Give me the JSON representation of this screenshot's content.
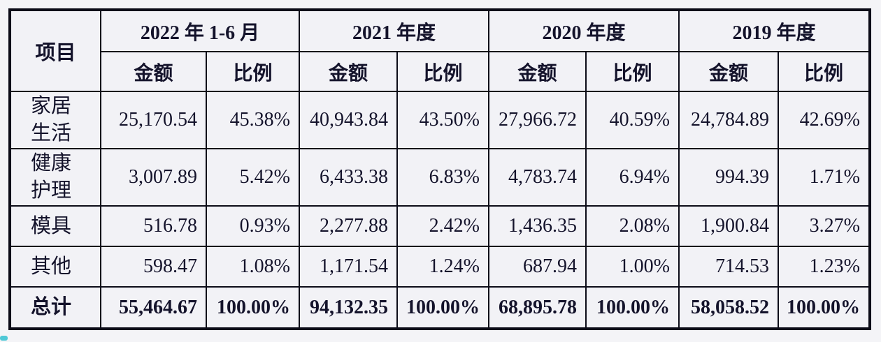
{
  "page": {
    "background_color": "#f4f4f7",
    "cell_background_color": "#f2f2f6",
    "border_color": "#0c0c18",
    "text_color": "#14132b",
    "corner_accent_color": "#4fc8d6"
  },
  "table": {
    "item_header": "项目",
    "col_groups": [
      {
        "label": "2022 年 1-6 月",
        "sub": [
          "金额",
          "比例"
        ]
      },
      {
        "label": "2021 年度",
        "sub": [
          "金额",
          "比例"
        ]
      },
      {
        "label": "2020 年度",
        "sub": [
          "金额",
          "比例"
        ]
      },
      {
        "label": "2019 年度",
        "sub": [
          "金额",
          "比例"
        ]
      }
    ],
    "rows": [
      {
        "label": "家居生活",
        "values": [
          "25,170.54",
          "45.38%",
          "40,943.84",
          "43.50%",
          "27,966.72",
          "40.59%",
          "24,784.89",
          "42.69%"
        ]
      },
      {
        "label": "健康护理",
        "values": [
          "3,007.89",
          "5.42%",
          "6,433.38",
          "6.83%",
          "4,783.74",
          "6.94%",
          "994.39",
          "1.71%"
        ]
      },
      {
        "label": "模具",
        "values": [
          "516.78",
          "0.93%",
          "2,277.88",
          "2.42%",
          "1,436.35",
          "2.08%",
          "1,900.84",
          "3.27%"
        ]
      },
      {
        "label": "其他",
        "values": [
          "598.47",
          "1.08%",
          "1,171.54",
          "1.24%",
          "687.94",
          "1.00%",
          "714.53",
          "1.23%"
        ]
      },
      {
        "label": "总计",
        "values": [
          "55,464.67",
          "100.00%",
          "94,132.35",
          "100.00%",
          "68,895.78",
          "100.00%",
          "58,058.52",
          "100.00%"
        ]
      }
    ]
  }
}
